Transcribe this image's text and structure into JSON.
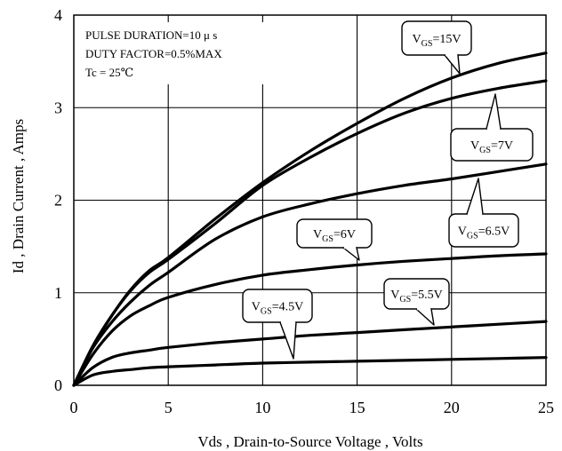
{
  "chart_data": {
    "type": "line",
    "title": "",
    "xlabel": "Vds , Drain-to-Source Voltage , Volts",
    "ylabel": "Id , Drain Current , Amps",
    "xlim": [
      0,
      25
    ],
    "ylim": [
      0,
      4
    ],
    "xticks": [
      "0",
      "5",
      "10",
      "15",
      "20",
      "25"
    ],
    "yticks": [
      "0",
      "1",
      "2",
      "3",
      "4"
    ],
    "grid": true,
    "conditions": [
      "PULSE DURATION=10 μ s",
      "DUTY FACTOR=0.5%MAX",
      "Tc = 25℃"
    ],
    "x": [
      0,
      1,
      2,
      3,
      4,
      5,
      7.5,
      10,
      12.5,
      15,
      17.5,
      20,
      22.5,
      25
    ],
    "series": [
      {
        "name": "VGS=15V",
        "label_main": "V",
        "label_sub": "GS",
        "label_tail": "=15V",
        "values": [
          0,
          0.42,
          0.75,
          1.03,
          1.24,
          1.38,
          1.8,
          2.19,
          2.53,
          2.83,
          3.1,
          3.32,
          3.48,
          3.59
        ]
      },
      {
        "name": "VGS=7V",
        "label_main": "V",
        "label_sub": "GS",
        "label_tail": "=7V",
        "values": [
          0,
          0.42,
          0.75,
          1.02,
          1.22,
          1.36,
          1.75,
          2.16,
          2.46,
          2.72,
          2.94,
          3.1,
          3.21,
          3.29
        ]
      },
      {
        "name": "VGS=6.5V",
        "label_main": "V",
        "label_sub": "GS",
        "label_tail": "=6.5V",
        "values": [
          0,
          0.4,
          0.68,
          0.9,
          1.08,
          1.22,
          1.58,
          1.82,
          1.96,
          2.07,
          2.16,
          2.23,
          2.31,
          2.39
        ]
      },
      {
        "name": "VGS=6V",
        "label_main": "V",
        "label_sub": "GS",
        "label_tail": "=6V",
        "values": [
          0,
          0.33,
          0.58,
          0.75,
          0.86,
          0.95,
          1.09,
          1.19,
          1.25,
          1.3,
          1.34,
          1.37,
          1.4,
          1.42
        ]
      },
      {
        "name": "VGS=5.5V",
        "label_main": "V",
        "label_sub": "GS",
        "label_tail": "=5.5V",
        "values": [
          0,
          0.19,
          0.3,
          0.35,
          0.38,
          0.41,
          0.46,
          0.5,
          0.54,
          0.57,
          0.6,
          0.63,
          0.66,
          0.69
        ]
      },
      {
        "name": "VGS=4.5V",
        "label_main": "V",
        "label_sub": "GS",
        "label_tail": "=4.5V",
        "values": [
          0,
          0.11,
          0.15,
          0.17,
          0.19,
          0.2,
          0.22,
          0.24,
          0.25,
          0.26,
          0.27,
          0.28,
          0.29,
          0.3
        ]
      }
    ]
  }
}
